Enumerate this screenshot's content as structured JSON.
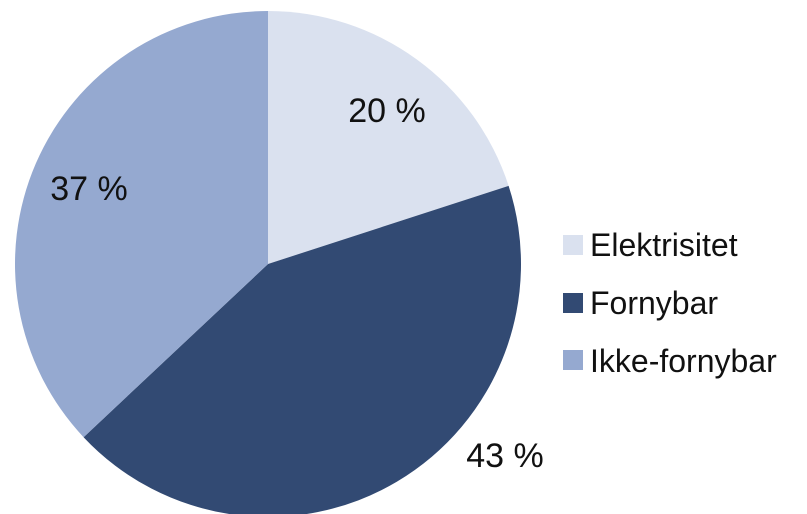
{
  "chart_data": {
    "type": "pie",
    "title": "",
    "categories": [
      "Elektrisitet",
      "Fornybar",
      "Ikke-fornybar"
    ],
    "values": [
      20,
      43,
      37
    ],
    "data_labels": [
      "20 %",
      "43 %",
      "37 %"
    ],
    "colors": [
      "#dae1ef",
      "#324a73",
      "#95a9d0"
    ],
    "legend_position": "right",
    "start_angle": "12 o'clock",
    "direction": "clockwise"
  }
}
